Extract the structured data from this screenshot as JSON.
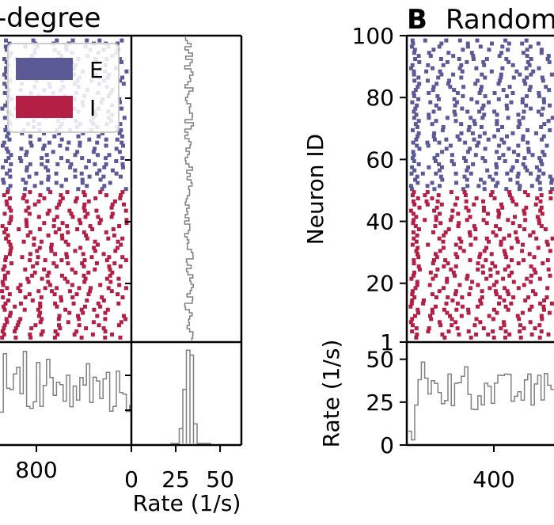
{
  "panel_a": {
    "title": "-degree",
    "legend": [
      {
        "label": "E",
        "color": "#5b5a96"
      },
      {
        "label": "I",
        "color": "#b41f45"
      }
    ]
  },
  "panel_b": {
    "letter": "B",
    "title": "Random",
    "ylabel": "Neuron ID"
  },
  "chart_data": [
    {
      "type": "scatter",
      "name": "Panel A raster",
      "series": [
        {
          "name": "E",
          "neuron_range": [
            50,
            100
          ],
          "color": "#5b5a96"
        },
        {
          "name": "I",
          "neuron_range": [
            1,
            50
          ],
          "color": "#b41f45"
        }
      ],
      "ylim": [
        1,
        100
      ],
      "xlabel": "",
      "ylabel": ""
    },
    {
      "type": "line",
      "name": "Panel A population rate",
      "x_ticks": [
        "800"
      ],
      "ylim": [
        0,
        60
      ],
      "color": "#808080"
    },
    {
      "type": "bar",
      "name": "Panel A rate histogram",
      "xlabel": "Rate (1/s)",
      "x_ticks": [
        "0",
        "25",
        "50"
      ],
      "xlim": [
        0,
        62
      ],
      "color": "#808080"
    },
    {
      "type": "scatter",
      "name": "Panel B raster",
      "series": [
        {
          "name": "E",
          "neuron_range": [
            50,
            100
          ],
          "color": "#5b5a96"
        },
        {
          "name": "I",
          "neuron_range": [
            1,
            50
          ],
          "color": "#b41f45"
        }
      ],
      "ylabel": "Neuron ID",
      "y_ticks": [
        "1",
        "20",
        "40",
        "60",
        "80",
        "100"
      ],
      "ylim": [
        1,
        100
      ]
    },
    {
      "type": "line",
      "name": "Panel B population rate",
      "ylabel": "Rate (1/s)",
      "y_ticks": [
        "0",
        "25",
        "50"
      ],
      "x_ticks": [
        "400"
      ],
      "ylim": [
        0,
        60
      ],
      "color": "#808080"
    }
  ]
}
